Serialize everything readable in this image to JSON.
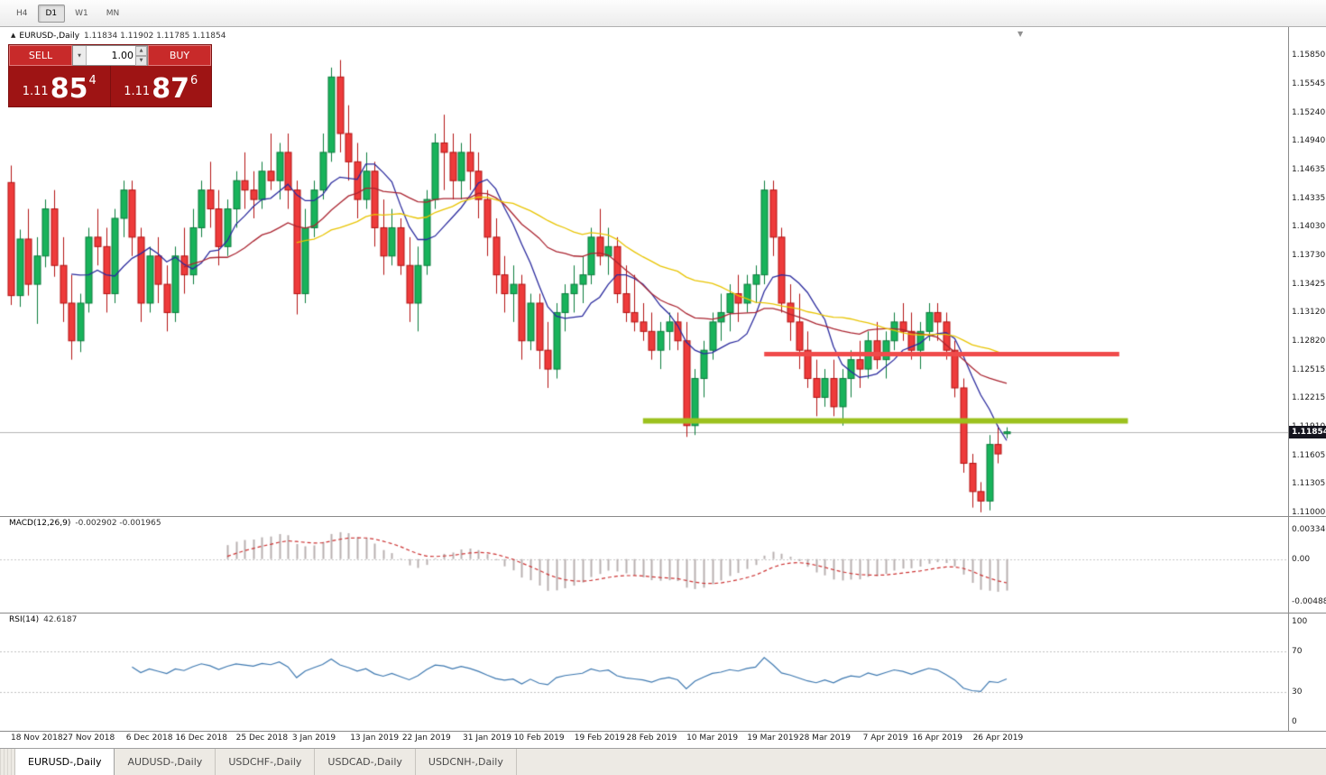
{
  "toolbar": {
    "timeframes": [
      "H4",
      "D1",
      "W1",
      "MN"
    ],
    "active": "D1"
  },
  "header": {
    "symbol_title": "EURUSD-,Daily",
    "ohlc_values": "1.11834 1.11902 1.11785 1.11854"
  },
  "trade_widget": {
    "sell_label": "SELL",
    "buy_label": "BUY",
    "lot_value": "1.00",
    "sell_price": {
      "prefix": "1.11",
      "pips": "85",
      "fraction": "4"
    },
    "buy_price": {
      "prefix": "1.11",
      "pips": "87",
      "fraction": "6"
    }
  },
  "indicators": {
    "macd_label": "MACD(12,26,9)",
    "macd_values": "-0.002902 -0.001965",
    "rsi_label": "RSI(14)",
    "rsi_value": "42.6187"
  },
  "price_tag": "1.11854",
  "icons": {
    "symbol_marker": "▲",
    "lot_dropdown": "▼",
    "spin_up": "▲",
    "spin_down": "▼",
    "scroll_end": "▼"
  },
  "bottom_tabs": {
    "items": [
      "EURUSD-,Daily",
      "AUDUSD-,Daily",
      "USDCHF-,Daily",
      "USDCAD-,Daily",
      "USDCNH-,Daily"
    ],
    "active_index": 0
  },
  "colors": {
    "bull": "#18b35b",
    "bull_border": "#0b7c3c",
    "bear": "#ee3b3b",
    "bear_border": "#b31212",
    "resistance_line": "#f04b4b",
    "support_line": "#9cc11e",
    "widget_red": "#9e1414",
    "button_red": "#c82a2a"
  },
  "chart_data": {
    "type": "candlestick",
    "symbol": "EURUSD-",
    "timeframe": "Daily",
    "current_price": 1.11854,
    "scales": {
      "price": {
        "min": 1.1096,
        "max": 1.1615
      },
      "macd": {
        "min": -0.0058,
        "max": 0.0045
      },
      "rsi": {
        "min": -5,
        "max": 105
      }
    },
    "price_axis_ticks": [
      "1.15850",
      "1.15545",
      "1.15240",
      "1.14940",
      "1.14635",
      "1.14335",
      "1.14030",
      "1.13730",
      "1.13425",
      "1.13120",
      "1.12820",
      "1.12515",
      "1.12215",
      "1.11910",
      "1.11605",
      "1.11305",
      "1.11000"
    ],
    "macd_axis_ticks": [
      {
        "label": "0.003346",
        "value": 0.003346
      },
      {
        "label": "0.00",
        "value": 0
      },
      {
        "label": "-0.004885",
        "value": -0.004885
      }
    ],
    "rsi_axis_ticks": [
      {
        "label": "100",
        "value": 100
      },
      {
        "label": "70",
        "value": 70
      },
      {
        "label": "30",
        "value": 30
      },
      {
        "label": "0",
        "value": 0
      }
    ],
    "rsi_levels": [
      30,
      70
    ],
    "date_ticks": [
      {
        "label": "18 Nov 2018",
        "index": 3
      },
      {
        "label": "27 Nov 2018",
        "index": 9
      },
      {
        "label": "6 Dec 2018",
        "index": 16
      },
      {
        "label": "16 Dec 2018",
        "index": 22
      },
      {
        "label": "25 Dec 2018",
        "index": 29
      },
      {
        "label": "3 Jan 2019",
        "index": 35
      },
      {
        "label": "13 Jan 2019",
        "index": 42
      },
      {
        "label": "22 Jan 2019",
        "index": 48
      },
      {
        "label": "31 Jan 2019",
        "index": 55
      },
      {
        "label": "10 Feb 2019",
        "index": 61
      },
      {
        "label": "19 Feb 2019",
        "index": 68
      },
      {
        "label": "28 Feb 2019",
        "index": 74
      },
      {
        "label": "10 Mar 2019",
        "index": 81
      },
      {
        "label": "19 Mar 2019",
        "index": 88
      },
      {
        "label": "28 Mar 2019",
        "index": 94
      },
      {
        "label": "7 Apr 2019",
        "index": 101
      },
      {
        "label": "16 Apr 2019",
        "index": 107
      },
      {
        "label": "26 Apr 2019",
        "index": 114
      }
    ],
    "moving_averages": [
      {
        "period": 8,
        "color": "#2b2b9e"
      },
      {
        "period": 21,
        "color": "#aa2430"
      },
      {
        "period": 34,
        "color": "#e8c400"
      }
    ],
    "macd": {
      "fast": 12,
      "slow": 26,
      "signal": 9,
      "histogram_color": "#b8b0b0",
      "signal_color": "#cc3333"
    },
    "rsi": {
      "period": 14,
      "color": "#3d78b0",
      "level_color": "#c0c0c0"
    },
    "hlines": [
      {
        "name": "resistance",
        "price": 1.1268,
        "from_index": 87,
        "to_index": 128,
        "color": "#f04b4b",
        "width": 5
      },
      {
        "name": "support",
        "price": 1.1197,
        "from_index": 73,
        "to_index": 129,
        "color": "#9cc11e",
        "width": 6
      }
    ],
    "candle_colors": {
      "bull": "#18b35b",
      "bull_border": "#0b7c3c",
      "bear": "#ee3b3b",
      "bear_border": "#b31212"
    },
    "candles": [
      [
        1.145,
        1.1468,
        1.132,
        1.133
      ],
      [
        1.133,
        1.14,
        1.1318,
        1.139
      ],
      [
        1.139,
        1.1422,
        1.133,
        1.1342
      ],
      [
        1.1342,
        1.1392,
        1.13,
        1.1372
      ],
      [
        1.1372,
        1.1432,
        1.136,
        1.1422
      ],
      [
        1.1422,
        1.1442,
        1.135,
        1.1362
      ],
      [
        1.1362,
        1.1392,
        1.1302,
        1.1322
      ],
      [
        1.1322,
        1.1352,
        1.1262,
        1.1282
      ],
      [
        1.1282,
        1.1332,
        1.127,
        1.1322
      ],
      [
        1.1322,
        1.1402,
        1.1312,
        1.1392
      ],
      [
        1.1392,
        1.1422,
        1.1362,
        1.1382
      ],
      [
        1.1382,
        1.1402,
        1.1312,
        1.1332
      ],
      [
        1.1332,
        1.1422,
        1.1322,
        1.1412
      ],
      [
        1.1412,
        1.1452,
        1.1392,
        1.1442
      ],
      [
        1.1442,
        1.1452,
        1.1372,
        1.1392
      ],
      [
        1.1392,
        1.1402,
        1.1302,
        1.1322
      ],
      [
        1.1322,
        1.1382,
        1.1312,
        1.1372
      ],
      [
        1.1372,
        1.1392,
        1.1322,
        1.1342
      ],
      [
        1.1342,
        1.1362,
        1.1292,
        1.1312
      ],
      [
        1.1312,
        1.1382,
        1.1302,
        1.1372
      ],
      [
        1.1372,
        1.1402,
        1.1332,
        1.1352
      ],
      [
        1.1352,
        1.1422,
        1.1342,
        1.1402
      ],
      [
        1.1402,
        1.1452,
        1.1392,
        1.1442
      ],
      [
        1.1442,
        1.1472,
        1.1402,
        1.1422
      ],
      [
        1.1422,
        1.1442,
        1.1362,
        1.1382
      ],
      [
        1.1382,
        1.1432,
        1.1372,
        1.1422
      ],
      [
        1.1422,
        1.1462,
        1.1402,
        1.1452
      ],
      [
        1.1452,
        1.1482,
        1.1422,
        1.1442
      ],
      [
        1.1442,
        1.1462,
        1.1412,
        1.1432
      ],
      [
        1.1432,
        1.1472,
        1.1422,
        1.1462
      ],
      [
        1.1462,
        1.1502,
        1.1442,
        1.1452
      ],
      [
        1.1452,
        1.1492,
        1.1432,
        1.1482
      ],
      [
        1.1482,
        1.1502,
        1.1422,
        1.1442
      ],
      [
        1.1442,
        1.1452,
        1.131,
        1.1332
      ],
      [
        1.1332,
        1.1422,
        1.1322,
        1.1402
      ],
      [
        1.1402,
        1.1452,
        1.1392,
        1.1442
      ],
      [
        1.1442,
        1.1502,
        1.1432,
        1.1482
      ],
      [
        1.1482,
        1.1572,
        1.1472,
        1.1562
      ],
      [
        1.1562,
        1.158,
        1.1482,
        1.1502
      ],
      [
        1.1502,
        1.1532,
        1.1452,
        1.1472
      ],
      [
        1.1472,
        1.1492,
        1.1412,
        1.1432
      ],
      [
        1.1432,
        1.1482,
        1.1422,
        1.1462
      ],
      [
        1.1462,
        1.1472,
        1.1382,
        1.1402
      ],
      [
        1.1402,
        1.1432,
        1.1352,
        1.1372
      ],
      [
        1.1372,
        1.1422,
        1.1362,
        1.1402
      ],
      [
        1.1402,
        1.1412,
        1.1352,
        1.1362
      ],
      [
        1.1362,
        1.1392,
        1.1302,
        1.1322
      ],
      [
        1.1322,
        1.1382,
        1.1292,
        1.1362
      ],
      [
        1.1362,
        1.1442,
        1.1352,
        1.1432
      ],
      [
        1.1432,
        1.1502,
        1.1422,
        1.1492
      ],
      [
        1.1492,
        1.1522,
        1.1442,
        1.1482
      ],
      [
        1.1482,
        1.1502,
        1.1432,
        1.1452
      ],
      [
        1.1452,
        1.1492,
        1.1432,
        1.1482
      ],
      [
        1.1482,
        1.1502,
        1.1442,
        1.1462
      ],
      [
        1.1462,
        1.1482,
        1.1412,
        1.1432
      ],
      [
        1.1432,
        1.1442,
        1.1372,
        1.1392
      ],
      [
        1.1392,
        1.1412,
        1.1332,
        1.1352
      ],
      [
        1.1352,
        1.1372,
        1.1312,
        1.1332
      ],
      [
        1.1332,
        1.1362,
        1.1302,
        1.1342
      ],
      [
        1.1342,
        1.1352,
        1.1262,
        1.1282
      ],
      [
        1.1282,
        1.1332,
        1.1272,
        1.1322
      ],
      [
        1.1322,
        1.1332,
        1.1252,
        1.1272
      ],
      [
        1.1272,
        1.1302,
        1.1232,
        1.1252
      ],
      [
        1.1252,
        1.1322,
        1.1242,
        1.1312
      ],
      [
        1.1312,
        1.1342,
        1.1292,
        1.1332
      ],
      [
        1.1332,
        1.1362,
        1.1312,
        1.1342
      ],
      [
        1.1342,
        1.1372,
        1.1322,
        1.1352
      ],
      [
        1.1352,
        1.1402,
        1.1342,
        1.1392
      ],
      [
        1.1392,
        1.1422,
        1.1362,
        1.1372
      ],
      [
        1.1372,
        1.1402,
        1.1352,
        1.1382
      ],
      [
        1.1382,
        1.1392,
        1.1322,
        1.1332
      ],
      [
        1.1332,
        1.1362,
        1.1302,
        1.1312
      ],
      [
        1.1312,
        1.1352,
        1.1292,
        1.1302
      ],
      [
        1.1302,
        1.1322,
        1.1282,
        1.1292
      ],
      [
        1.1292,
        1.1312,
        1.1262,
        1.1272
      ],
      [
        1.1272,
        1.1302,
        1.1252,
        1.1292
      ],
      [
        1.1292,
        1.1312,
        1.1272,
        1.1302
      ],
      [
        1.1302,
        1.1312,
        1.1272,
        1.1282
      ],
      [
        1.1282,
        1.1302,
        1.118,
        1.1192
      ],
      [
        1.1192,
        1.1252,
        1.1182,
        1.1242
      ],
      [
        1.1242,
        1.1282,
        1.1222,
        1.1272
      ],
      [
        1.1272,
        1.1312,
        1.1262,
        1.1302
      ],
      [
        1.1302,
        1.1332,
        1.1282,
        1.1312
      ],
      [
        1.1312,
        1.1342,
        1.1292,
        1.1332
      ],
      [
        1.1332,
        1.1352,
        1.1302,
        1.1322
      ],
      [
        1.1322,
        1.1352,
        1.1312,
        1.1342
      ],
      [
        1.1342,
        1.1362,
        1.1322,
        1.1352
      ],
      [
        1.1352,
        1.1452,
        1.1342,
        1.1442
      ],
      [
        1.1442,
        1.1452,
        1.1372,
        1.1392
      ],
      [
        1.1392,
        1.1402,
        1.1312,
        1.1322
      ],
      [
        1.1322,
        1.1342,
        1.1282,
        1.1302
      ],
      [
        1.1302,
        1.1332,
        1.1252,
        1.1272
      ],
      [
        1.1272,
        1.1292,
        1.1232,
        1.1242
      ],
      [
        1.1242,
        1.1262,
        1.1202,
        1.1222
      ],
      [
        1.1222,
        1.1252,
        1.1212,
        1.1242
      ],
      [
        1.1242,
        1.1262,
        1.1202,
        1.1212
      ],
      [
        1.1212,
        1.1252,
        1.1192,
        1.1242
      ],
      [
        1.1242,
        1.1272,
        1.1222,
        1.1262
      ],
      [
        1.1262,
        1.1282,
        1.1232,
        1.1252
      ],
      [
        1.1252,
        1.1292,
        1.1242,
        1.1282
      ],
      [
        1.1282,
        1.1302,
        1.1252,
        1.1262
      ],
      [
        1.1262,
        1.1292,
        1.1242,
        1.1282
      ],
      [
        1.1282,
        1.1312,
        1.1272,
        1.1302
      ],
      [
        1.1302,
        1.1322,
        1.1282,
        1.1292
      ],
      [
        1.1292,
        1.1312,
        1.1262,
        1.1272
      ],
      [
        1.1272,
        1.1302,
        1.1252,
        1.1292
      ],
      [
        1.1292,
        1.1322,
        1.1282,
        1.1312
      ],
      [
        1.1312,
        1.1322,
        1.1282,
        1.1302
      ],
      [
        1.1302,
        1.1312,
        1.1262,
        1.1272
      ],
      [
        1.1272,
        1.1282,
        1.1222,
        1.1232
      ],
      [
        1.1232,
        1.1242,
        1.1142,
        1.1152
      ],
      [
        1.1152,
        1.1162,
        1.1105,
        1.1122
      ],
      [
        1.1122,
        1.1132,
        1.11,
        1.1112
      ],
      [
        1.1112,
        1.1182,
        1.1102,
        1.1172
      ],
      [
        1.1172,
        1.1192,
        1.1152,
        1.1162
      ],
      [
        1.11834,
        1.11902,
        1.11785,
        1.11854
      ]
    ]
  }
}
